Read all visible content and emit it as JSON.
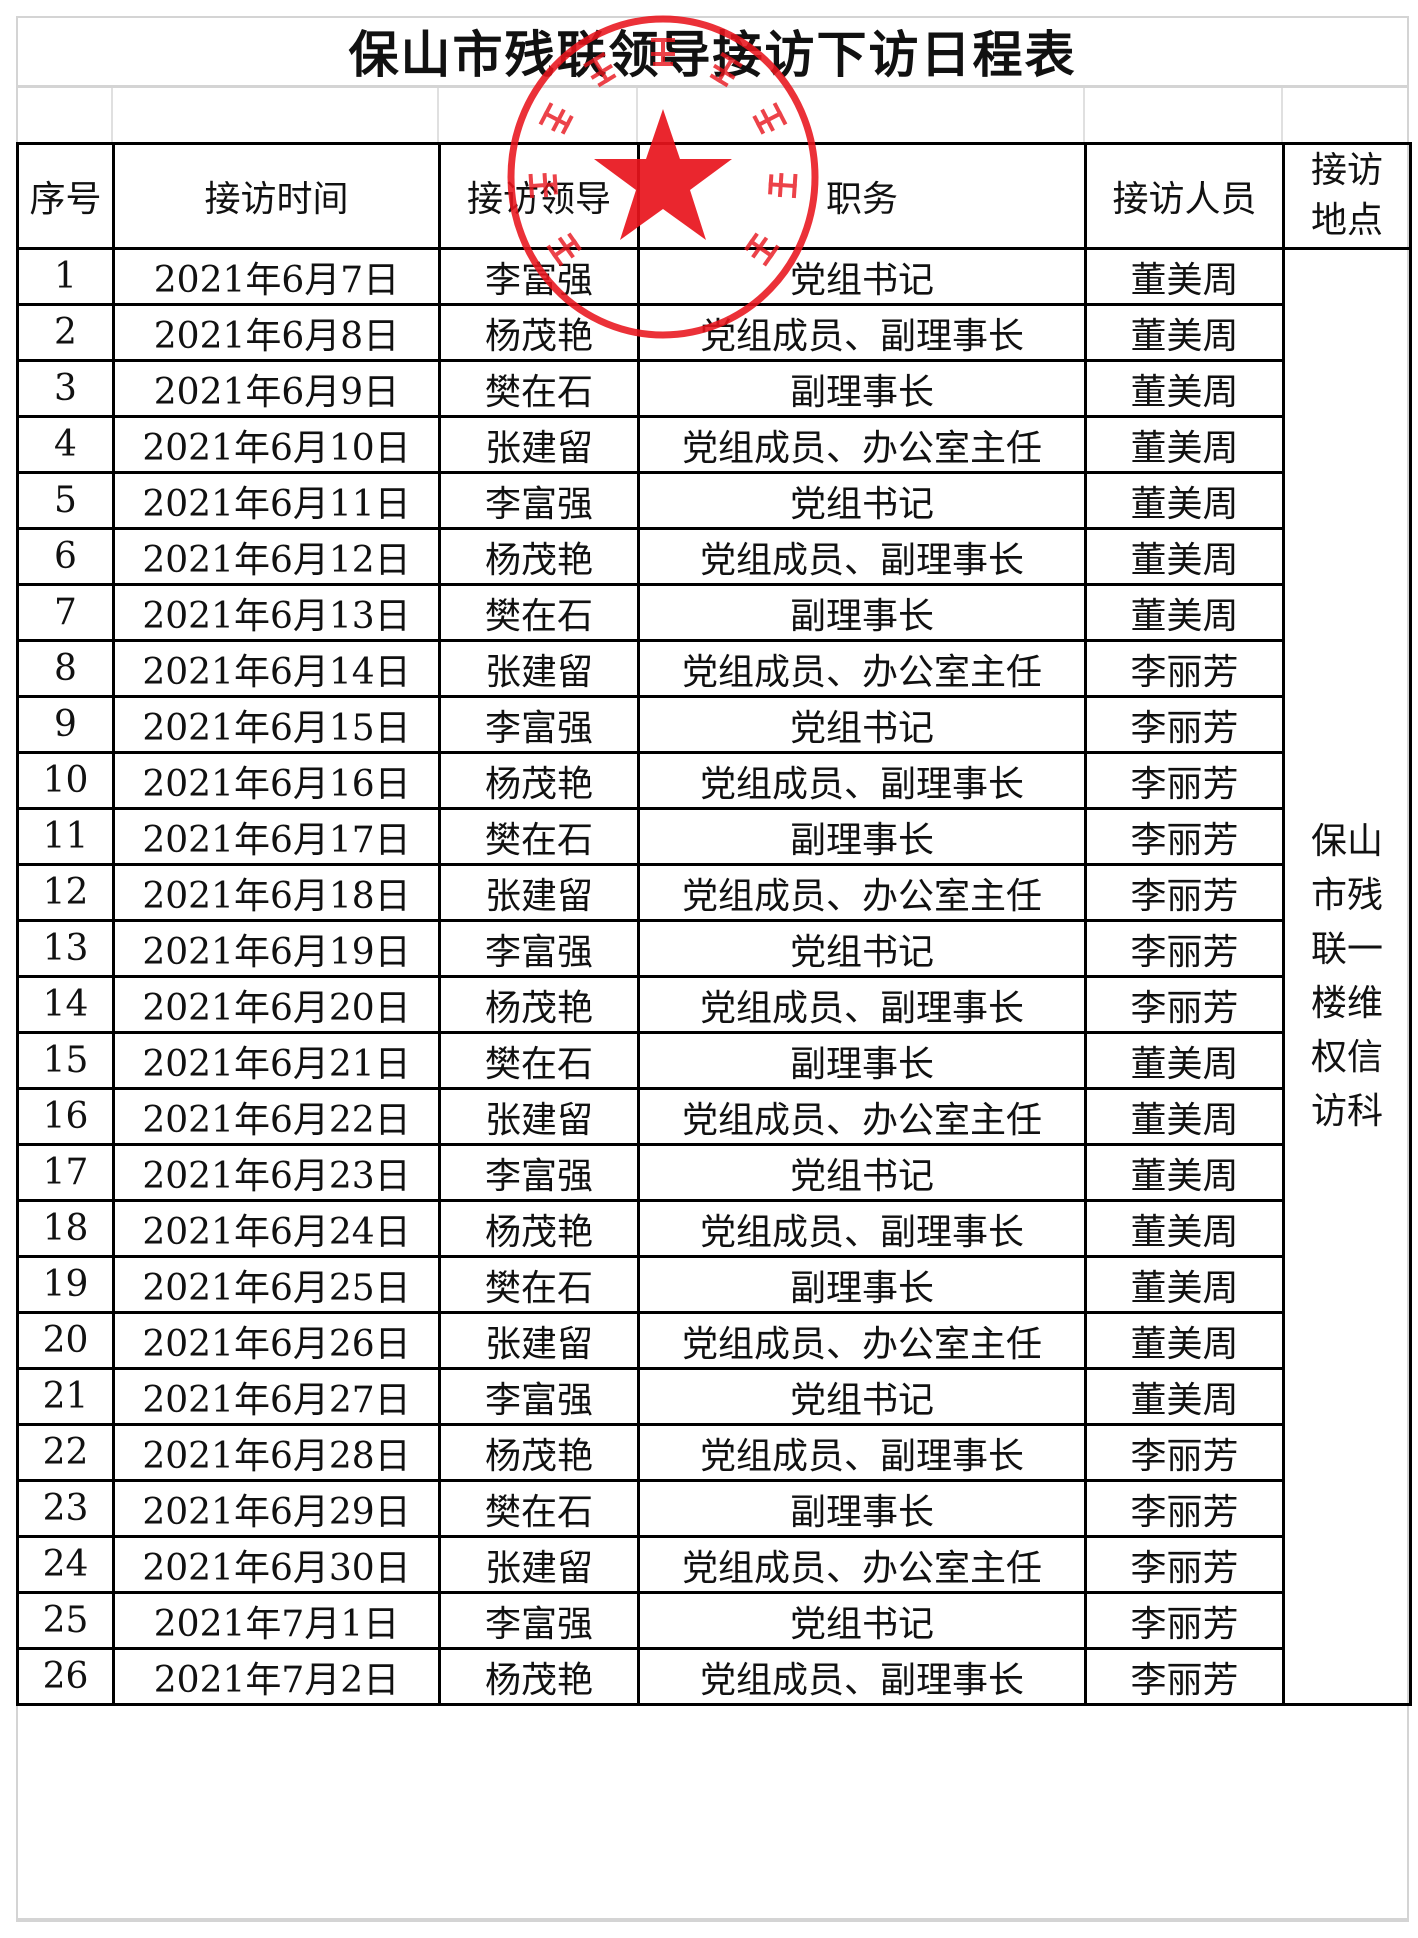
{
  "title": "保山市残联领导接访下访日程表",
  "headers": [
    "序号",
    "接访时间",
    "接访领导",
    "职务",
    "接访人员",
    "接访地点"
  ],
  "location": "保山市残联一楼维权信访科",
  "stamp": {
    "text": "保山市残疾人联合会",
    "color": "#e8141c"
  },
  "rows": [
    {
      "no": "1",
      "date": "2021年6月7日",
      "leader": "李富强",
      "role": "党组书记",
      "staff": "董美周"
    },
    {
      "no": "2",
      "date": "2021年6月8日",
      "leader": "杨茂艳",
      "role": "党组成员、副理事长",
      "staff": "董美周"
    },
    {
      "no": "3",
      "date": "2021年6月9日",
      "leader": "樊在石",
      "role": "副理事长",
      "staff": "董美周"
    },
    {
      "no": "4",
      "date": "2021年6月10日",
      "leader": "张建留",
      "role": "党组成员、办公室主任",
      "staff": "董美周"
    },
    {
      "no": "5",
      "date": "2021年6月11日",
      "leader": "李富强",
      "role": "党组书记",
      "staff": "董美周"
    },
    {
      "no": "6",
      "date": "2021年6月12日",
      "leader": "杨茂艳",
      "role": "党组成员、副理事长",
      "staff": "董美周"
    },
    {
      "no": "7",
      "date": "2021年6月13日",
      "leader": "樊在石",
      "role": "副理事长",
      "staff": "董美周"
    },
    {
      "no": "8",
      "date": "2021年6月14日",
      "leader": "张建留",
      "role": "党组成员、办公室主任",
      "staff": "李丽芳"
    },
    {
      "no": "9",
      "date": "2021年6月15日",
      "leader": "李富强",
      "role": "党组书记",
      "staff": "李丽芳"
    },
    {
      "no": "10",
      "date": "2021年6月16日",
      "leader": "杨茂艳",
      "role": "党组成员、副理事长",
      "staff": "李丽芳"
    },
    {
      "no": "11",
      "date": "2021年6月17日",
      "leader": "樊在石",
      "role": "副理事长",
      "staff": "李丽芳"
    },
    {
      "no": "12",
      "date": "2021年6月18日",
      "leader": "张建留",
      "role": "党组成员、办公室主任",
      "staff": "李丽芳"
    },
    {
      "no": "13",
      "date": "2021年6月19日",
      "leader": "李富强",
      "role": "党组书记",
      "staff": "李丽芳"
    },
    {
      "no": "14",
      "date": "2021年6月20日",
      "leader": "杨茂艳",
      "role": "党组成员、副理事长",
      "staff": "李丽芳"
    },
    {
      "no": "15",
      "date": "2021年6月21日",
      "leader": "樊在石",
      "role": "副理事长",
      "staff": "董美周"
    },
    {
      "no": "16",
      "date": "2021年6月22日",
      "leader": "张建留",
      "role": "党组成员、办公室主任",
      "staff": "董美周"
    },
    {
      "no": "17",
      "date": "2021年6月23日",
      "leader": "李富强",
      "role": "党组书记",
      "staff": "董美周"
    },
    {
      "no": "18",
      "date": "2021年6月24日",
      "leader": "杨茂艳",
      "role": "党组成员、副理事长",
      "staff": "董美周"
    },
    {
      "no": "19",
      "date": "2021年6月25日",
      "leader": "樊在石",
      "role": "副理事长",
      "staff": "董美周"
    },
    {
      "no": "20",
      "date": "2021年6月26日",
      "leader": "张建留",
      "role": "党组成员、办公室主任",
      "staff": "董美周"
    },
    {
      "no": "21",
      "date": "2021年6月27日",
      "leader": "李富强",
      "role": "党组书记",
      "staff": "董美周"
    },
    {
      "no": "22",
      "date": "2021年6月28日",
      "leader": "杨茂艳",
      "role": "党组成员、副理事长",
      "staff": "李丽芳"
    },
    {
      "no": "23",
      "date": "2021年6月29日",
      "leader": "樊在石",
      "role": "副理事长",
      "staff": "李丽芳"
    },
    {
      "no": "24",
      "date": "2021年6月30日",
      "leader": "张建留",
      "role": "党组成员、办公室主任",
      "staff": "李丽芳"
    },
    {
      "no": "25",
      "date": "2021年7月1日",
      "leader": "李富强",
      "role": "党组书记",
      "staff": "李丽芳"
    },
    {
      "no": "26",
      "date": "2021年7月2日",
      "leader": "杨茂艳",
      "role": "党组成员、副理事长",
      "staff": "李丽芳"
    }
  ]
}
